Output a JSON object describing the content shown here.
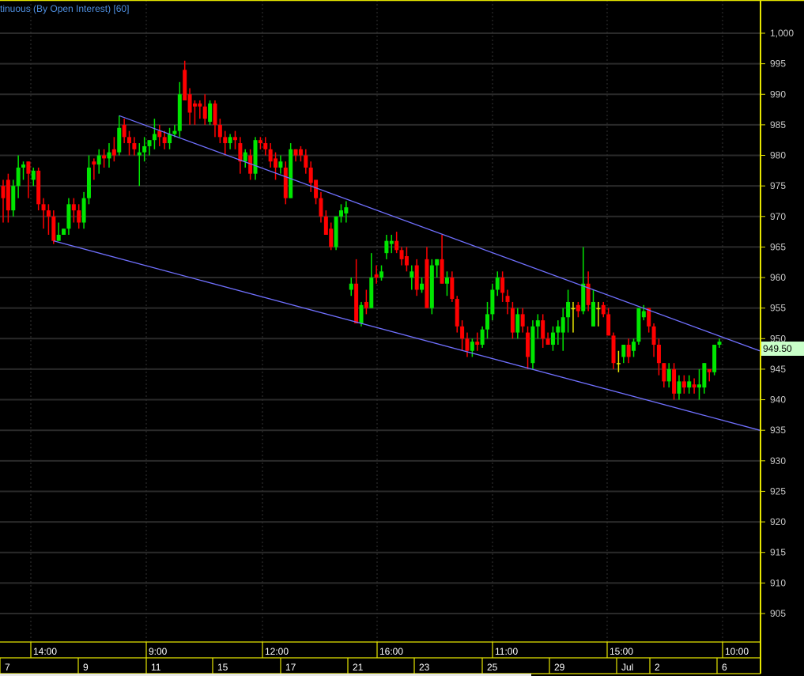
{
  "header": {
    "title": "tinuous (By Open Interest) [60]"
  },
  "last_price_label": "949.50",
  "colors": {
    "up": "#00e600",
    "down": "#ff0000",
    "doji": "#e6e600",
    "trendline": "#7070ff",
    "axis": "#e6e600",
    "grid": "#2a2a2a",
    "last_price_bg": "#c9ffc9"
  },
  "chart_data": {
    "type": "candlestick",
    "title": "tinuous (By Open Interest) [60]",
    "ylim": [
      900.3,
      1005.4
    ],
    "grid": true,
    "y_ticks": [
      1000,
      995,
      990,
      985,
      980,
      975,
      970,
      965,
      960,
      955,
      950,
      945,
      940,
      935,
      930,
      925,
      920,
      915,
      910,
      905
    ],
    "y_tick_labels": [
      "1,000",
      "995",
      "990",
      "985",
      "980",
      "975",
      "970",
      "965",
      "960",
      "955",
      "950",
      "945",
      "940",
      "935",
      "930",
      "925",
      "920",
      "915",
      "910",
      "905"
    ],
    "time_labels": [
      "14:00",
      "9:00",
      "12:00",
      "16:00",
      "11:00",
      "15:00",
      "10:00"
    ],
    "date_labels": [
      "7",
      "9",
      "11",
      "15",
      "17",
      "21",
      "23",
      "25",
      "29",
      "Jul",
      "2",
      "6"
    ],
    "last_price": 949.5,
    "ohlc": [
      [
        975,
        976,
        969,
        973
      ],
      [
        976,
        977,
        969,
        971
      ],
      [
        971,
        976,
        970,
        975
      ],
      [
        975,
        980,
        973,
        978
      ],
      [
        978,
        979,
        976,
        978.5
      ],
      [
        979,
        979,
        973,
        977
      ],
      [
        976,
        978,
        975,
        977.5
      ],
      [
        977.5,
        978,
        971,
        972
      ],
      [
        972,
        973,
        968,
        971
      ],
      [
        971,
        972,
        967,
        970
      ],
      [
        970,
        971,
        965.5,
        966
      ],
      [
        966,
        969,
        966,
        967
      ],
      [
        967,
        968,
        967,
        968
      ],
      [
        968,
        973,
        967,
        972
      ],
      [
        972,
        973,
        969,
        971
      ],
      [
        971,
        972,
        968,
        969
      ],
      [
        969,
        974,
        968,
        973
      ],
      [
        973,
        980,
        972,
        978
      ],
      [
        979,
        979.5,
        976,
        978.5
      ],
      [
        978.5,
        981,
        977,
        980
      ],
      [
        980,
        981,
        978,
        979.5
      ],
      [
        979.5,
        982,
        978,
        980.5
      ],
      [
        981,
        983,
        979,
        980
      ],
      [
        980.5,
        986.5,
        980,
        984.5
      ],
      [
        985,
        986,
        982,
        983
      ],
      [
        983,
        984,
        980,
        982
      ],
      [
        982,
        983,
        980,
        981
      ],
      [
        980,
        982,
        975,
        980.5
      ],
      [
        980.5,
        983,
        979,
        981.5
      ],
      [
        981.5,
        982.5,
        980,
        982.5
      ],
      [
        982.5,
        986,
        981,
        983.5
      ],
      [
        984,
        985,
        981.5,
        983
      ],
      [
        983,
        984,
        981,
        982
      ],
      [
        982,
        984.5,
        981,
        983.5
      ],
      [
        983.5,
        985,
        983,
        984
      ],
      [
        984,
        992,
        983,
        990
      ],
      [
        994,
        995.5,
        989,
        989
      ],
      [
        990,
        991,
        985,
        987
      ],
      [
        988.5,
        989,
        985,
        988
      ],
      [
        988.5,
        989,
        986,
        988
      ],
      [
        988,
        990,
        985,
        986
      ],
      [
        985.5,
        989,
        985,
        988.5
      ],
      [
        988.5,
        989,
        983,
        985
      ],
      [
        985,
        986,
        982,
        983
      ],
      [
        983,
        984,
        980,
        982
      ],
      [
        982,
        983.5,
        981,
        983
      ],
      [
        983,
        984,
        981,
        982.5
      ],
      [
        982,
        983,
        977,
        979
      ],
      [
        979,
        981,
        978,
        980.5
      ],
      [
        980,
        981,
        976,
        977
      ],
      [
        977,
        983,
        976,
        982.5
      ],
      [
        982.5,
        983,
        981,
        982
      ],
      [
        982,
        983,
        980,
        981
      ],
      [
        981,
        982,
        978,
        979
      ],
      [
        979.5,
        980.5,
        976,
        978
      ],
      [
        978,
        980,
        977,
        979
      ],
      [
        978,
        979,
        972,
        973
      ],
      [
        973,
        982,
        973,
        981
      ],
      [
        981,
        981,
        979,
        980
      ],
      [
        981,
        981.5,
        979,
        980
      ],
      [
        980,
        981,
        977,
        978
      ],
      [
        978,
        979,
        974,
        975.5
      ],
      [
        976,
        976,
        972,
        973
      ],
      [
        973,
        974,
        969,
        970
      ],
      [
        970,
        971,
        967,
        967
      ],
      [
        968,
        969,
        964.5,
        965
      ],
      [
        965,
        970,
        964.5,
        970
      ],
      [
        970,
        972,
        969,
        971
      ],
      [
        970.5,
        972.5,
        969,
        971.5
      ],
      [
        958,
        960,
        957,
        959
      ],
      [
        959,
        963,
        953,
        952.5
      ],
      [
        952.5,
        956,
        952,
        955.5
      ],
      [
        956,
        958,
        954,
        955
      ],
      [
        955,
        964,
        955,
        960
      ],
      [
        960.5,
        962,
        959,
        960
      ],
      [
        960,
        962,
        959.5,
        961
      ],
      [
        964,
        967,
        963,
        966
      ],
      [
        965.5,
        967,
        964,
        966
      ],
      [
        966,
        967.5,
        964,
        964.5
      ],
      [
        964.5,
        965,
        962,
        963
      ],
      [
        963.5,
        965,
        961,
        962
      ],
      [
        960,
        962,
        958,
        961
      ],
      [
        962,
        963,
        957,
        958
      ],
      [
        958,
        960,
        957.5,
        959
      ],
      [
        963,
        965,
        955,
        955
      ],
      [
        955,
        963,
        954,
        962
      ],
      [
        962,
        963,
        960,
        963
      ],
      [
        963,
        967,
        959,
        959
      ],
      [
        959,
        961,
        957,
        960
      ],
      [
        960,
        961,
        956,
        956.5
      ],
      [
        956.5,
        957,
        951,
        952
      ],
      [
        952,
        953,
        948,
        950
      ],
      [
        950,
        951,
        947,
        948
      ],
      [
        948,
        950,
        947,
        949.5
      ],
      [
        949.5,
        951,
        948,
        949
      ],
      [
        949,
        952,
        948.5,
        951.5
      ],
      [
        951.5,
        956,
        950,
        954
      ],
      [
        954,
        959,
        953,
        958
      ],
      [
        958,
        961,
        957,
        960
      ],
      [
        960,
        961,
        956,
        957.5
      ],
      [
        957,
        958,
        954,
        956
      ],
      [
        955,
        956,
        950,
        951
      ],
      [
        951,
        955,
        950,
        954
      ],
      [
        954,
        955,
        951,
        952
      ],
      [
        951,
        952,
        945,
        947
      ],
      [
        946,
        953,
        945,
        952
      ],
      [
        952,
        954,
        950,
        953
      ],
      [
        953,
        954,
        948.5,
        950
      ],
      [
        950,
        951,
        949,
        949
      ],
      [
        949,
        952,
        948,
        951
      ],
      [
        951,
        953,
        949,
        952
      ],
      [
        951,
        955,
        948,
        953.5
      ],
      [
        953.5,
        958,
        951,
        956
      ],
      [
        955,
        956,
        951,
        955
      ],
      [
        955.5,
        956,
        953.5,
        954.5
      ],
      [
        954.5,
        965,
        954,
        959
      ],
      [
        959,
        961,
        954.5,
        955.5
      ],
      [
        952,
        958,
        952,
        956
      ],
      [
        955,
        956,
        952,
        955
      ],
      [
        955.5,
        956,
        953.5,
        954
      ],
      [
        954,
        955,
        950.5,
        950.5
      ],
      [
        950.5,
        951,
        945,
        946
      ],
      [
        946,
        948,
        944.5,
        946
      ],
      [
        947,
        949,
        946,
        949
      ],
      [
        949,
        950,
        946,
        947
      ],
      [
        948,
        950,
        947,
        949.5
      ],
      [
        949.5,
        955,
        949,
        955
      ],
      [
        953.5,
        955.5,
        953,
        954.5
      ],
      [
        955,
        955,
        951,
        952
      ],
      [
        952,
        952.5,
        947,
        949
      ],
      [
        949,
        950,
        944,
        946
      ],
      [
        946,
        946,
        942,
        943
      ],
      [
        943,
        946,
        942,
        945
      ],
      [
        945,
        946,
        940,
        941
      ],
      [
        941,
        944,
        940,
        943
      ],
      [
        943,
        944,
        941,
        942
      ],
      [
        942,
        944,
        941,
        943
      ],
      [
        942.5,
        943.5,
        941,
        942
      ],
      [
        942,
        945,
        940,
        942.5
      ],
      [
        942,
        946,
        941,
        946
      ],
      [
        945,
        945,
        943,
        944.5
      ],
      [
        944.5,
        949,
        944,
        949
      ],
      [
        949,
        950,
        948.5,
        949.5
      ]
    ],
    "trendlines": [
      {
        "start_index": 23,
        "start_price": 986.5,
        "end_index": 150,
        "end_price": 948
      },
      {
        "start_index": 10,
        "start_price": 966,
        "end_index": 150,
        "end_price": 935
      }
    ]
  }
}
